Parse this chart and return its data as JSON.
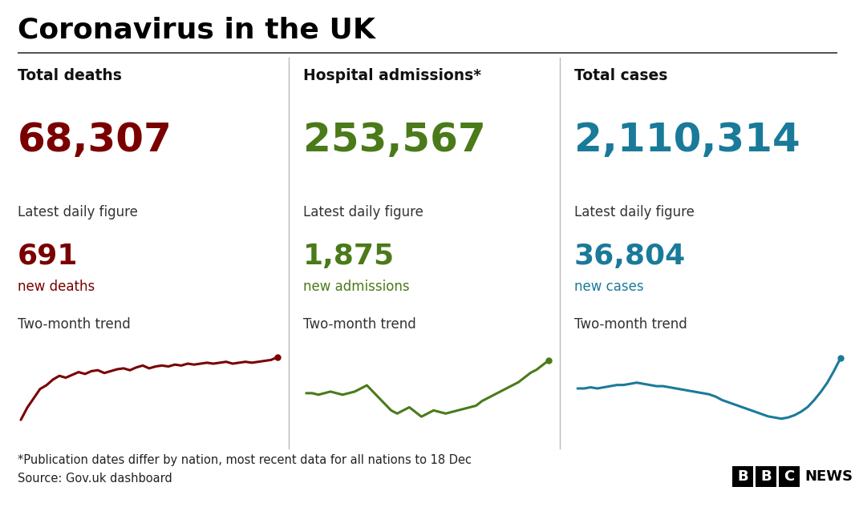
{
  "title": "Coronavirus in the UK",
  "bg_color": "#ffffff",
  "title_color": "#000000",
  "title_fontsize": 26,
  "columns": [
    {
      "label": "Total deaths",
      "total": "68,307",
      "total_color": "#7a0000",
      "daily_label": "Latest daily figure",
      "daily_value": "691",
      "daily_value_color": "#7a0000",
      "daily_unit": "new deaths",
      "daily_unit_color": "#7a0000",
      "trend_label": "Two-month trend",
      "trend_color": "#7a0000",
      "trend_x": [
        0,
        1,
        2,
        3,
        4,
        5,
        6,
        7,
        8,
        9,
        10,
        11,
        12,
        13,
        14,
        15,
        16,
        17,
        18,
        19,
        20,
        21,
        22,
        23,
        24,
        25,
        26,
        27,
        28,
        29,
        30,
        31,
        32,
        33,
        34,
        35,
        36,
        37,
        38,
        39,
        40
      ],
      "trend_y": [
        0.05,
        0.18,
        0.28,
        0.38,
        0.42,
        0.48,
        0.52,
        0.5,
        0.53,
        0.56,
        0.54,
        0.57,
        0.58,
        0.55,
        0.57,
        0.59,
        0.6,
        0.58,
        0.61,
        0.63,
        0.6,
        0.62,
        0.63,
        0.62,
        0.64,
        0.63,
        0.65,
        0.64,
        0.65,
        0.66,
        0.65,
        0.66,
        0.67,
        0.65,
        0.66,
        0.67,
        0.66,
        0.67,
        0.68,
        0.69,
        0.72
      ]
    },
    {
      "label": "Hospital admissions*",
      "total": "253,567",
      "total_color": "#4a7a19",
      "daily_label": "Latest daily figure",
      "daily_value": "1,875",
      "daily_value_color": "#4a7a19",
      "daily_unit": "new admissions",
      "daily_unit_color": "#4a7a19",
      "trend_label": "Two-month trend",
      "trend_color": "#4a7a19",
      "trend_x": [
        0,
        1,
        2,
        3,
        4,
        5,
        6,
        7,
        8,
        9,
        10,
        11,
        12,
        13,
        14,
        15,
        16,
        17,
        18,
        19,
        20,
        21,
        22,
        23,
        24,
        25,
        26,
        27,
        28,
        29,
        30,
        31,
        32,
        33,
        34,
        35,
        36,
        37,
        38,
        39,
        40
      ],
      "trend_y": [
        0.55,
        0.55,
        0.54,
        0.55,
        0.56,
        0.55,
        0.54,
        0.55,
        0.56,
        0.58,
        0.6,
        0.56,
        0.52,
        0.48,
        0.44,
        0.42,
        0.44,
        0.46,
        0.43,
        0.4,
        0.42,
        0.44,
        0.43,
        0.42,
        0.43,
        0.44,
        0.45,
        0.46,
        0.47,
        0.5,
        0.52,
        0.54,
        0.56,
        0.58,
        0.6,
        0.62,
        0.65,
        0.68,
        0.7,
        0.73,
        0.76
      ]
    },
    {
      "label": "Total cases",
      "total": "2,110,314",
      "total_color": "#1a7a9a",
      "daily_label": "Latest daily figure",
      "daily_value": "36,804",
      "daily_value_color": "#1a7a9a",
      "daily_unit": "new cases",
      "daily_unit_color": "#1a7a9a",
      "trend_label": "Two-month trend",
      "trend_color": "#1a7a9a",
      "trend_x": [
        0,
        1,
        2,
        3,
        4,
        5,
        6,
        7,
        8,
        9,
        10,
        11,
        12,
        13,
        14,
        15,
        16,
        17,
        18,
        19,
        20,
        21,
        22,
        23,
        24,
        25,
        26,
        27,
        28,
        29,
        30,
        31,
        32,
        33,
        34,
        35,
        36,
        37,
        38,
        39,
        40
      ],
      "trend_y": [
        0.6,
        0.6,
        0.61,
        0.6,
        0.61,
        0.62,
        0.63,
        0.63,
        0.64,
        0.65,
        0.64,
        0.63,
        0.62,
        0.62,
        0.61,
        0.6,
        0.59,
        0.58,
        0.57,
        0.56,
        0.55,
        0.53,
        0.5,
        0.48,
        0.46,
        0.44,
        0.42,
        0.4,
        0.38,
        0.36,
        0.35,
        0.34,
        0.35,
        0.37,
        0.4,
        0.44,
        0.5,
        0.57,
        0.65,
        0.75,
        0.86
      ]
    }
  ],
  "footnote1": "*Publication dates differ by nation, most recent data for all nations to 18 Dec",
  "footnote2": "Source: Gov.uk dashboard",
  "footnote_color": "#222222",
  "footnote_fontsize": 10.5
}
